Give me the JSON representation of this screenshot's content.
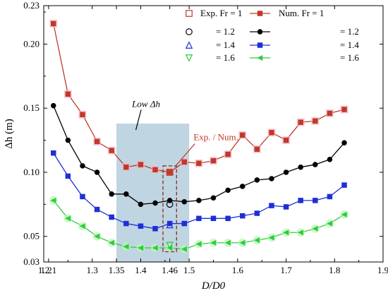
{
  "chart_data": {
    "type": "line",
    "xlabel": "D/D0",
    "ylabel": "Δh (m)",
    "xlim": [
      1.2,
      1.9
    ],
    "ylim": [
      0.03,
      0.23
    ],
    "x_ticks": [
      1.2,
      1.3,
      1.4,
      1.5,
      1.6,
      1.7,
      1.8,
      1.9
    ],
    "x_tick_labels": [
      "1.2",
      "1.3",
      "1.4",
      "1.5",
      "1.6",
      "1.7",
      "1.8",
      "1.9"
    ],
    "x_extra_ticks": [
      1.21,
      1.35,
      1.46
    ],
    "x_extra_tick_labels": [
      "1.21",
      "1.35",
      "1.46"
    ],
    "y_ticks": [
      0.03,
      0.05,
      0.1,
      0.15,
      0.2,
      0.23
    ],
    "y_tick_labels": [
      "0.03",
      "0.05",
      "0.10",
      "0.15",
      "0.20",
      "0.23"
    ],
    "grid": false,
    "legend_position": "top-right",
    "legend_exp_title": "Exp. Fr = 1",
    "legend_num_title": "Num. Fr = 1",
    "legend_value_labels": [
      "= 1.2",
      "= 1.4",
      "= 1.6"
    ],
    "x": [
      1.22,
      1.24,
      1.26,
      1.28,
      1.3,
      1.32,
      1.34,
      1.36,
      1.38,
      1.4,
      1.42,
      1.44,
      1.46,
      1.48,
      1.5,
      1.52,
      1.55,
      1.58,
      1.61,
      1.64,
      1.67,
      1.7,
      1.73,
      1.76,
      1.79,
      1.82,
      1.83
    ],
    "series": [
      {
        "name": "Num. Fr = 1",
        "color": "#c0392b",
        "marker": "square",
        "x": [
          1.22,
          1.25,
          1.28,
          1.31,
          1.34,
          1.37,
          1.4,
          1.43,
          1.46,
          1.49,
          1.52,
          1.55,
          1.58,
          1.61,
          1.64,
          1.67,
          1.7,
          1.73,
          1.76,
          1.79,
          1.82
        ],
        "values": [
          0.216,
          0.161,
          0.145,
          0.124,
          0.117,
          0.104,
          0.106,
          0.102,
          0.1,
          0.108,
          0.107,
          0.109,
          0.114,
          0.129,
          0.118,
          0.131,
          0.125,
          0.139,
          0.14,
          0.146,
          0.149
        ]
      },
      {
        "name": "= 1.2",
        "color": "#000000",
        "marker": "circle",
        "x": [
          1.22,
          1.25,
          1.28,
          1.31,
          1.34,
          1.37,
          1.4,
          1.43,
          1.46,
          1.49,
          1.52,
          1.55,
          1.58,
          1.61,
          1.64,
          1.67,
          1.7,
          1.73,
          1.76,
          1.79,
          1.82
        ],
        "values": [
          0.152,
          0.125,
          0.105,
          0.1,
          0.083,
          0.083,
          0.075,
          0.076,
          0.078,
          0.077,
          0.078,
          0.08,
          0.086,
          0.089,
          0.094,
          0.095,
          0.1,
          0.104,
          0.106,
          0.11,
          0.123
        ]
      },
      {
        "name": "= 1.4",
        "color": "#1f2fd6",
        "marker": "square",
        "x": [
          1.22,
          1.25,
          1.28,
          1.31,
          1.34,
          1.37,
          1.4,
          1.43,
          1.46,
          1.49,
          1.52,
          1.55,
          1.58,
          1.61,
          1.64,
          1.67,
          1.7,
          1.73,
          1.76,
          1.79,
          1.82
        ],
        "values": [
          0.115,
          0.097,
          0.081,
          0.071,
          0.065,
          0.06,
          0.058,
          0.056,
          0.06,
          0.06,
          0.064,
          0.064,
          0.064,
          0.066,
          0.068,
          0.074,
          0.073,
          0.078,
          0.078,
          0.081,
          0.09
        ]
      },
      {
        "name": "= 1.6",
        "color": "#2ecc40",
        "marker": "triangle-left",
        "x": [
          1.22,
          1.25,
          1.28,
          1.31,
          1.34,
          1.37,
          1.4,
          1.43,
          1.46,
          1.49,
          1.52,
          1.55,
          1.58,
          1.61,
          1.64,
          1.67,
          1.7,
          1.73,
          1.76,
          1.79,
          1.82
        ],
        "values": [
          0.078,
          0.064,
          0.058,
          0.05,
          0.045,
          0.042,
          0.041,
          0.041,
          0.041,
          0.04,
          0.044,
          0.045,
          0.045,
          0.045,
          0.047,
          0.049,
          0.053,
          0.053,
          0.056,
          0.06,
          0.067
        ]
      }
    ],
    "exp_points": [
      {
        "name": "Exp. Fr = 1",
        "color": "#c0392b",
        "marker": "square",
        "x": 1.46,
        "value": 0.1
      },
      {
        "name": "= 1.2",
        "color": "#000000",
        "marker": "circle",
        "x": 1.46,
        "value": 0.075
      },
      {
        "name": "= 1.4",
        "color": "#1f2fd6",
        "marker": "triangle-up",
        "x": 1.46,
        "value": 0.059
      },
      {
        "name": "= 1.6",
        "color": "#2ecc40",
        "marker": "triangle-down",
        "x": 1.46,
        "value": 0.043
      }
    ],
    "region": {
      "x_range": [
        1.35,
        1.5
      ],
      "y_range": [
        0.03,
        0.138
      ],
      "label": "Low Δh",
      "color": "#a9c7d8"
    },
    "annotations": [
      {
        "text": "Exp. / Num.",
        "x": 1.5,
        "y": 0.125,
        "color": "#c0392b"
      }
    ],
    "highlight_box": {
      "x_range": [
        1.446,
        1.474
      ],
      "y_range": [
        0.038,
        0.105
      ],
      "color": "#8b2a1a"
    }
  }
}
